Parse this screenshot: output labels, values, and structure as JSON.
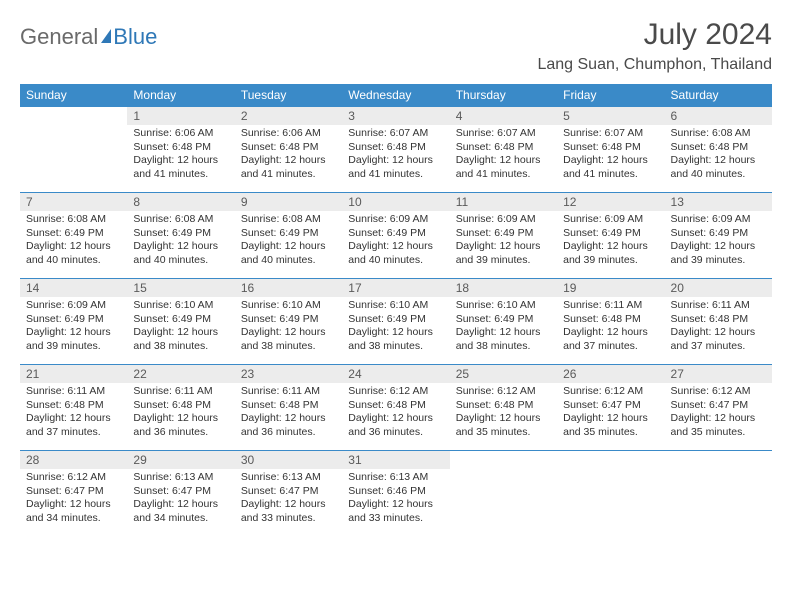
{
  "logo": {
    "part1": "General",
    "part2": "Blue"
  },
  "title": "July 2024",
  "location": "Lang Suan, Chumphon, Thailand",
  "colors": {
    "header_bg": "#3a8ac8",
    "header_fg": "#ffffff",
    "daynum_bg": "#ececec",
    "border": "#3a8ac8",
    "logo_gray": "#6a6a6a",
    "logo_blue": "#2f78b7"
  },
  "typography": {
    "title_fontsize": 30,
    "location_fontsize": 16,
    "weekday_fontsize": 12,
    "daynum_fontsize": 12,
    "body_fontsize": 10.5
  },
  "weekdays": [
    "Sunday",
    "Monday",
    "Tuesday",
    "Wednesday",
    "Thursday",
    "Friday",
    "Saturday"
  ],
  "weeks": [
    [
      null,
      {
        "n": "1",
        "sr": "6:06 AM",
        "ss": "6:48 PM",
        "dl": "12 hours and 41 minutes."
      },
      {
        "n": "2",
        "sr": "6:06 AM",
        "ss": "6:48 PM",
        "dl": "12 hours and 41 minutes."
      },
      {
        "n": "3",
        "sr": "6:07 AM",
        "ss": "6:48 PM",
        "dl": "12 hours and 41 minutes."
      },
      {
        "n": "4",
        "sr": "6:07 AM",
        "ss": "6:48 PM",
        "dl": "12 hours and 41 minutes."
      },
      {
        "n": "5",
        "sr": "6:07 AM",
        "ss": "6:48 PM",
        "dl": "12 hours and 41 minutes."
      },
      {
        "n": "6",
        "sr": "6:08 AM",
        "ss": "6:48 PM",
        "dl": "12 hours and 40 minutes."
      }
    ],
    [
      {
        "n": "7",
        "sr": "6:08 AM",
        "ss": "6:49 PM",
        "dl": "12 hours and 40 minutes."
      },
      {
        "n": "8",
        "sr": "6:08 AM",
        "ss": "6:49 PM",
        "dl": "12 hours and 40 minutes."
      },
      {
        "n": "9",
        "sr": "6:08 AM",
        "ss": "6:49 PM",
        "dl": "12 hours and 40 minutes."
      },
      {
        "n": "10",
        "sr": "6:09 AM",
        "ss": "6:49 PM",
        "dl": "12 hours and 40 minutes."
      },
      {
        "n": "11",
        "sr": "6:09 AM",
        "ss": "6:49 PM",
        "dl": "12 hours and 39 minutes."
      },
      {
        "n": "12",
        "sr": "6:09 AM",
        "ss": "6:49 PM",
        "dl": "12 hours and 39 minutes."
      },
      {
        "n": "13",
        "sr": "6:09 AM",
        "ss": "6:49 PM",
        "dl": "12 hours and 39 minutes."
      }
    ],
    [
      {
        "n": "14",
        "sr": "6:09 AM",
        "ss": "6:49 PM",
        "dl": "12 hours and 39 minutes."
      },
      {
        "n": "15",
        "sr": "6:10 AM",
        "ss": "6:49 PM",
        "dl": "12 hours and 38 minutes."
      },
      {
        "n": "16",
        "sr": "6:10 AM",
        "ss": "6:49 PM",
        "dl": "12 hours and 38 minutes."
      },
      {
        "n": "17",
        "sr": "6:10 AM",
        "ss": "6:49 PM",
        "dl": "12 hours and 38 minutes."
      },
      {
        "n": "18",
        "sr": "6:10 AM",
        "ss": "6:49 PM",
        "dl": "12 hours and 38 minutes."
      },
      {
        "n": "19",
        "sr": "6:11 AM",
        "ss": "6:48 PM",
        "dl": "12 hours and 37 minutes."
      },
      {
        "n": "20",
        "sr": "6:11 AM",
        "ss": "6:48 PM",
        "dl": "12 hours and 37 minutes."
      }
    ],
    [
      {
        "n": "21",
        "sr": "6:11 AM",
        "ss": "6:48 PM",
        "dl": "12 hours and 37 minutes."
      },
      {
        "n": "22",
        "sr": "6:11 AM",
        "ss": "6:48 PM",
        "dl": "12 hours and 36 minutes."
      },
      {
        "n": "23",
        "sr": "6:11 AM",
        "ss": "6:48 PM",
        "dl": "12 hours and 36 minutes."
      },
      {
        "n": "24",
        "sr": "6:12 AM",
        "ss": "6:48 PM",
        "dl": "12 hours and 36 minutes."
      },
      {
        "n": "25",
        "sr": "6:12 AM",
        "ss": "6:48 PM",
        "dl": "12 hours and 35 minutes."
      },
      {
        "n": "26",
        "sr": "6:12 AM",
        "ss": "6:47 PM",
        "dl": "12 hours and 35 minutes."
      },
      {
        "n": "27",
        "sr": "6:12 AM",
        "ss": "6:47 PM",
        "dl": "12 hours and 35 minutes."
      }
    ],
    [
      {
        "n": "28",
        "sr": "6:12 AM",
        "ss": "6:47 PM",
        "dl": "12 hours and 34 minutes."
      },
      {
        "n": "29",
        "sr": "6:13 AM",
        "ss": "6:47 PM",
        "dl": "12 hours and 34 minutes."
      },
      {
        "n": "30",
        "sr": "6:13 AM",
        "ss": "6:47 PM",
        "dl": "12 hours and 33 minutes."
      },
      {
        "n": "31",
        "sr": "6:13 AM",
        "ss": "6:46 PM",
        "dl": "12 hours and 33 minutes."
      },
      null,
      null,
      null
    ]
  ],
  "labels": {
    "sunrise": "Sunrise:",
    "sunset": "Sunset:",
    "daylight": "Daylight:"
  }
}
